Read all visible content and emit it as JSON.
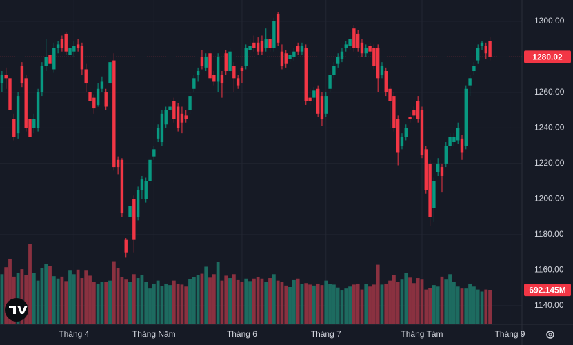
{
  "chart_data": {
    "type": "candlestick",
    "open": [
      1265,
      1270,
      1268,
      1245,
      1237,
      1275,
      1268,
      1245,
      1240,
      1240,
      1260,
      1275,
      1281,
      1273,
      1285,
      1290,
      1293,
      1281,
      1283,
      1287,
      1286,
      1273,
      1260,
      1257,
      1253,
      1262,
      1260,
      1265,
      1278,
      1222,
      1222,
      1177,
      1190,
      1200,
      1190,
      1205,
      1200,
      1210,
      1224,
      1234,
      1232,
      1242,
      1250,
      1255,
      1252,
      1248,
      1247,
      1250,
      1262,
      1270,
      1280,
      1274,
      1282,
      1270,
      1266,
      1270,
      1282,
      1272,
      1275,
      1268,
      1274,
      1275,
      1284,
      1288,
      1288,
      1289,
      1285,
      1290,
      1285,
      1304,
      1283,
      1282,
      1279,
      1280,
      1286,
      1283,
      1285,
      1257,
      1257,
      1262,
      1258,
      1248,
      1262,
      1270,
      1276,
      1279,
      1285,
      1286,
      1296,
      1293,
      1288,
      1282,
      1286,
      1285,
      1285,
      1270,
      1272,
      1262,
      1258,
      1245,
      1230,
      1235,
      1246,
      1250,
      1255,
      1250,
      1228,
      1220,
      1195,
      1215,
      1218,
      1220,
      1230,
      1232,
      1233,
      1234,
      1230,
      1264,
      1272,
      1278,
      1286,
      1286,
      1289
    ],
    "high": [
      1272,
      1274,
      1270,
      1248,
      1260,
      1277,
      1270,
      1248,
      1248,
      1262,
      1277,
      1290,
      1290,
      1288,
      1289,
      1292,
      1294,
      1290,
      1289,
      1290,
      1288,
      1276,
      1263,
      1259,
      1265,
      1269,
      1262,
      1280,
      1282,
      1224,
      1223,
      1178,
      1199,
      1202,
      1207,
      1213,
      1212,
      1224,
      1230,
      1242,
      1250,
      1252,
      1254,
      1257,
      1254,
      1252,
      1250,
      1260,
      1270,
      1274,
      1284,
      1282,
      1284,
      1272,
      1282,
      1272,
      1284,
      1285,
      1277,
      1270,
      1275,
      1287,
      1290,
      1292,
      1291,
      1292,
      1296,
      1293,
      1302,
      1305,
      1287,
      1284,
      1283,
      1285,
      1288,
      1288,
      1287,
      1262,
      1263,
      1264,
      1260,
      1260,
      1272,
      1277,
      1282,
      1285,
      1289,
      1294,
      1298,
      1295,
      1290,
      1287,
      1288,
      1287,
      1287,
      1277,
      1274,
      1264,
      1260,
      1247,
      1237,
      1242,
      1249,
      1252,
      1258,
      1252,
      1230,
      1222,
      1212,
      1223,
      1220,
      1232,
      1237,
      1237,
      1243,
      1236,
      1264,
      1270,
      1277,
      1287,
      1289,
      1288,
      1291
    ],
    "low": [
      1260,
      1262,
      1248,
      1233,
      1234,
      1263,
      1238,
      1222,
      1237,
      1238,
      1258,
      1272,
      1273,
      1271,
      1282,
      1283,
      1281,
      1279,
      1280,
      1283,
      1270,
      1260,
      1252,
      1248,
      1252,
      1260,
      1250,
      1263,
      1216,
      1214,
      1190,
      1167,
      1188,
      1170,
      1188,
      1200,
      1198,
      1208,
      1222,
      1232,
      1230,
      1240,
      1247,
      1243,
      1238,
      1237,
      1243,
      1248,
      1260,
      1266,
      1273,
      1272,
      1266,
      1264,
      1260,
      1257,
      1270,
      1270,
      1260,
      1262,
      1265,
      1273,
      1282,
      1283,
      1281,
      1281,
      1283,
      1283,
      1283,
      1286,
      1273,
      1274,
      1277,
      1278,
      1281,
      1281,
      1253,
      1253,
      1255,
      1246,
      1241,
      1246,
      1260,
      1268,
      1274,
      1277,
      1283,
      1284,
      1283,
      1283,
      1280,
      1280,
      1281,
      1273,
      1260,
      1268,
      1258,
      1240,
      1238,
      1219,
      1228,
      1233,
      1243,
      1245,
      1243,
      1223,
      1203,
      1185,
      1187,
      1213,
      1204,
      1218,
      1228,
      1230,
      1231,
      1222,
      1228,
      1258,
      1270,
      1276,
      1284,
      1279,
      1278
    ],
    "close": [
      1270,
      1268,
      1250,
      1235,
      1258,
      1265,
      1240,
      1235,
      1245,
      1260,
      1275,
      1280,
      1276,
      1285,
      1287,
      1285,
      1283,
      1285,
      1286,
      1285,
      1273,
      1265,
      1255,
      1251,
      1262,
      1266,
      1252,
      1277,
      1218,
      1218,
      1192,
      1170,
      1196,
      1177,
      1205,
      1211,
      1210,
      1222,
      1228,
      1240,
      1248,
      1250,
      1252,
      1245,
      1240,
      1243,
      1245,
      1258,
      1268,
      1272,
      1275,
      1280,
      1268,
      1266,
      1280,
      1265,
      1272,
      1283,
      1268,
      1264,
      1272,
      1285,
      1286,
      1285,
      1283,
      1283,
      1290,
      1285,
      1300,
      1288,
      1275,
      1276,
      1281,
      1283,
      1283,
      1286,
      1255,
      1255,
      1261,
      1248,
      1245,
      1258,
      1270,
      1275,
      1280,
      1283,
      1287,
      1290,
      1285,
      1285,
      1282,
      1285,
      1283,
      1275,
      1268,
      1275,
      1260,
      1255,
      1240,
      1226,
      1235,
      1240,
      1245,
      1247,
      1245,
      1225,
      1205,
      1190,
      1210,
      1220,
      1213,
      1230,
      1235,
      1235,
      1240,
      1226,
      1262,
      1268,
      1275,
      1285,
      1288,
      1282,
      1280.02
    ],
    "volume": [
      1010,
      1150,
      1320,
      960,
      1040,
      1110,
      990,
      1620,
      1030,
      880,
      1130,
      1220,
      1170,
      970,
      920,
      960,
      870,
      1080,
      1010,
      1100,
      930,
      1080,
      980,
      850,
      820,
      860,
      860,
      880,
      1270,
      1130,
      950,
      900,
      860,
      1010,
      930,
      990,
      860,
      720,
      820,
      880,
      770,
      820,
      790,
      880,
      820,
      800,
      760,
      910,
      950,
      990,
      1020,
      1160,
      940,
      1010,
      1250,
      880,
      980,
      930,
      1010,
      890,
      860,
      920,
      870,
      920,
      950,
      920,
      860,
      930,
      1010,
      880,
      860,
      780,
      750,
      890,
      920,
      810,
      830,
      800,
      780,
      820,
      790,
      880,
      810,
      800,
      740,
      680,
      720,
      760,
      800,
      820,
      700,
      810,
      760,
      800,
      1200,
      800,
      820,
      880,
      1000,
      850,
      900,
      1030,
      940,
      830,
      930,
      900,
      700,
      730,
      790,
      760,
      960,
      900,
      1010,
      850,
      760,
      720,
      720,
      820,
      760,
      700,
      660,
      700,
      692.145
    ],
    "last_volume_label": "692.145M",
    "xlim": [
      -0.5,
      130
    ],
    "ylim": [
      1129.5,
      1312
    ],
    "vlim": [
      0,
      2000
    ],
    "yticks": [
      {
        "value": 1140,
        "label": "1140.00"
      },
      {
        "value": 1160,
        "label": "1160.00"
      },
      {
        "value": 1180,
        "label": "1180.00"
      },
      {
        "value": 1200,
        "label": "1200.00"
      },
      {
        "value": 1220,
        "label": "1220.00"
      },
      {
        "value": 1240,
        "label": "1240.00"
      },
      {
        "value": 1260,
        "label": "1260.00"
      },
      {
        "value": 1280,
        "label": "1280.00"
      },
      {
        "value": 1300,
        "label": "1300.00"
      }
    ],
    "xticks": [
      {
        "value": 18,
        "label": "Tháng 4"
      },
      {
        "value": 38,
        "label": "Tháng Năm"
      },
      {
        "value": 60,
        "label": "Tháng 6"
      },
      {
        "value": 81,
        "label": "Tháng 7"
      },
      {
        "value": 105,
        "label": "Tháng Tám"
      },
      {
        "value": 127,
        "label": "Tháng 9"
      }
    ],
    "grid": true,
    "up_color": "#089981",
    "down_color": "#f23645",
    "volume_up_color": "#1d6b60",
    "volume_down_color": "#8a3140"
  }
}
